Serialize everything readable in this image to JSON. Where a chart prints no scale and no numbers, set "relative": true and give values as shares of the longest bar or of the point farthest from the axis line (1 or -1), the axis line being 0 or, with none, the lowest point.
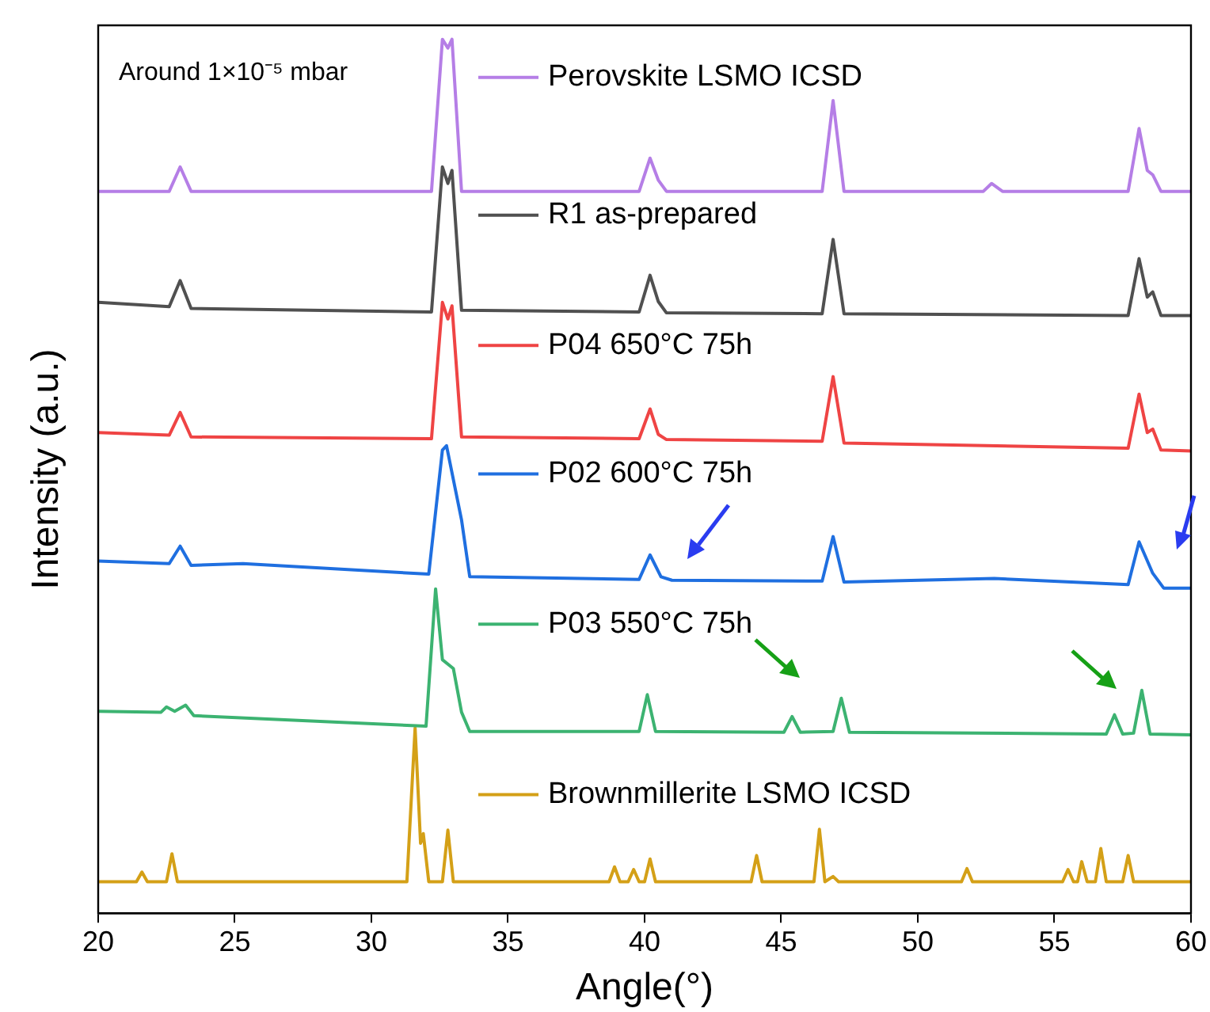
{
  "chart_data": {
    "type": "line",
    "relative": true,
    "xlabel": "Angle(°)",
    "ylabel": "Intensity (a.u.)",
    "xlim": [
      20,
      60
    ],
    "xticks": [
      20,
      25,
      30,
      35,
      40,
      45,
      50,
      55,
      60
    ],
    "grid": false,
    "legend": "top",
    "marker": "none",
    "line_style": "solid",
    "annotations": [
      "Around 1×10⁻⁵ mbar"
    ],
    "series": [
      {
        "name": "Perovskite LSMO ICSD",
        "color": "#b57ee6",
        "x": [
          20,
          22.6,
          23.0,
          23.4,
          32.2,
          32.6,
          32.8,
          32.95,
          33.3,
          39.8,
          40.2,
          40.5,
          40.8,
          46.5,
          46.9,
          47.3,
          52.4,
          52.7,
          53.1,
          57.7,
          58.1,
          58.4,
          58.6,
          58.9,
          60
        ],
        "values": [
          0.826,
          0.826,
          0.854,
          0.826,
          0.826,
          1.0,
          0.99,
          1.0,
          0.826,
          0.826,
          0.864,
          0.839,
          0.826,
          0.826,
          0.93,
          0.826,
          0.826,
          0.835,
          0.826,
          0.826,
          0.898,
          0.85,
          0.845,
          0.826,
          0.826
        ]
      },
      {
        "name": "R1 as-prepared",
        "color": "#505050",
        "x": [
          20,
          22.6,
          23.0,
          23.4,
          32.2,
          32.6,
          32.8,
          32.95,
          33.3,
          39.8,
          40.2,
          40.5,
          40.8,
          46.5,
          46.9,
          47.3,
          57.7,
          58.1,
          58.4,
          58.6,
          58.9,
          60
        ],
        "values": [
          0.699,
          0.694,
          0.724,
          0.692,
          0.688,
          0.854,
          0.835,
          0.85,
          0.69,
          0.688,
          0.73,
          0.7,
          0.687,
          0.686,
          0.771,
          0.686,
          0.684,
          0.749,
          0.705,
          0.711,
          0.684,
          0.684
        ]
      },
      {
        "name": "P04 650°C 75h",
        "color": "#ef4444",
        "x": [
          20,
          22.6,
          23.0,
          23.4,
          32.2,
          32.6,
          32.8,
          32.95,
          33.3,
          39.8,
          40.2,
          40.5,
          40.8,
          46.5,
          46.9,
          47.3,
          57.7,
          58.1,
          58.4,
          58.6,
          58.9,
          60
        ],
        "values": [
          0.55,
          0.547,
          0.573,
          0.545,
          0.543,
          0.699,
          0.68,
          0.695,
          0.545,
          0.543,
          0.577,
          0.548,
          0.542,
          0.54,
          0.614,
          0.538,
          0.532,
          0.594,
          0.55,
          0.554,
          0.53,
          0.529
        ]
      },
      {
        "name": "P02 600°C 75h",
        "color": "#1f6fe0",
        "x": [
          20,
          22.6,
          23.0,
          23.4,
          25.3,
          32.1,
          32.6,
          32.75,
          33.3,
          33.6,
          39.8,
          40.2,
          40.6,
          41,
          46.5,
          46.9,
          47.3,
          52.8,
          57.7,
          58.1,
          58.6,
          59,
          60
        ],
        "values": [
          0.403,
          0.4,
          0.42,
          0.398,
          0.4,
          0.388,
          0.53,
          0.535,
          0.45,
          0.385,
          0.382,
          0.41,
          0.385,
          0.381,
          0.38,
          0.431,
          0.379,
          0.383,
          0.376,
          0.425,
          0.389,
          0.372,
          0.372
        ]
      },
      {
        "name": "P03 550°C 75h",
        "color": "#3cb371",
        "x": [
          20,
          22.3,
          22.5,
          22.8,
          23.2,
          23.5,
          32.0,
          32.35,
          32.6,
          33.0,
          33.3,
          33.6,
          39.8,
          40.1,
          40.4,
          45.1,
          45.4,
          45.7,
          46.9,
          47.2,
          47.5,
          56.9,
          57.2,
          57.5,
          57.9,
          58.2,
          58.5,
          60
        ],
        "values": [
          0.231,
          0.23,
          0.236,
          0.231,
          0.238,
          0.226,
          0.214,
          0.371,
          0.29,
          0.28,
          0.23,
          0.208,
          0.208,
          0.25,
          0.208,
          0.207,
          0.225,
          0.207,
          0.208,
          0.246,
          0.207,
          0.205,
          0.227,
          0.205,
          0.206,
          0.255,
          0.205,
          0.204
        ]
      },
      {
        "name": "Brownmillerite LSMO ICSD",
        "color": "#d4a017",
        "x": [
          20,
          21.4,
          21.6,
          21.8,
          22.5,
          22.7,
          22.9,
          31.3,
          31.6,
          31.8,
          31.9,
          32.1,
          32.6,
          32.8,
          33.0,
          38.7,
          38.9,
          39.1,
          39.4,
          39.6,
          39.8,
          40.0,
          40.2,
          40.4,
          43.9,
          44.1,
          44.3,
          46.2,
          46.4,
          46.6,
          46.9,
          47.1,
          51.6,
          51.8,
          52.0,
          55.3,
          55.5,
          55.7,
          55.85,
          56.0,
          56.2,
          56.5,
          56.7,
          56.9,
          57.5,
          57.7,
          57.9,
          60
        ],
        "values": [
          0.036,
          0.036,
          0.047,
          0.036,
          0.036,
          0.068,
          0.036,
          0.036,
          0.212,
          0.08,
          0.091,
          0.036,
          0.036,
          0.095,
          0.036,
          0.036,
          0.053,
          0.036,
          0.036,
          0.05,
          0.036,
          0.036,
          0.062,
          0.036,
          0.036,
          0.066,
          0.036,
          0.036,
          0.096,
          0.036,
          0.042,
          0.036,
          0.036,
          0.051,
          0.036,
          0.036,
          0.05,
          0.036,
          0.036,
          0.059,
          0.036,
          0.036,
          0.074,
          0.036,
          0.036,
          0.066,
          0.036,
          0.036
        ]
      }
    ]
  }
}
